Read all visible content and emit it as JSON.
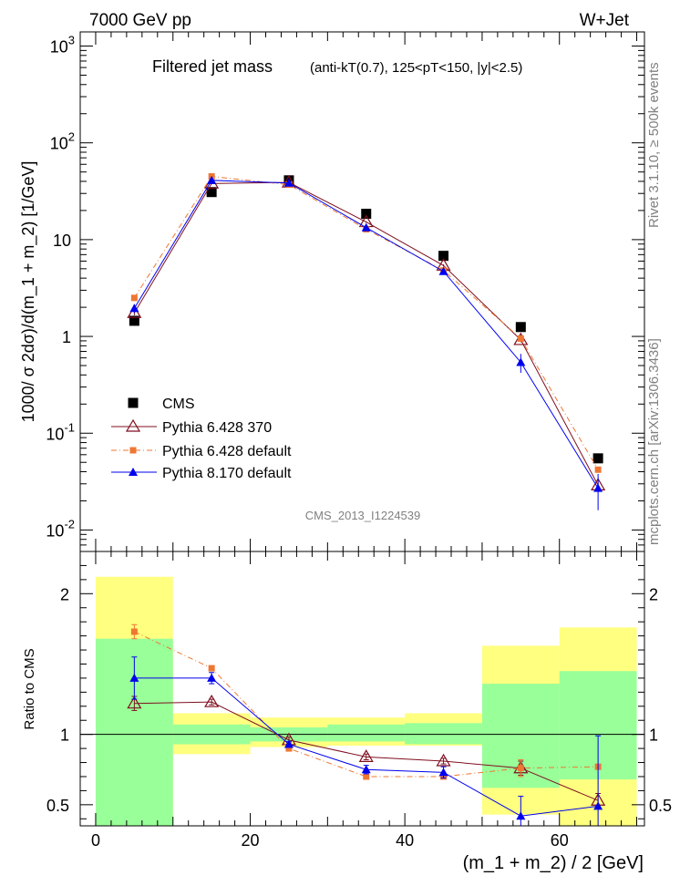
{
  "header": {
    "left": "7000 GeV pp",
    "right": "W+Jet"
  },
  "side_labels": {
    "rivet": "Rivet 3.1.10, ≥ 500k events",
    "mcplots": "mcplots.cern.ch [arXiv:1306.3436]"
  },
  "chart_data": [
    {
      "type": "line",
      "title": "Filtered jet mass",
      "subtitle": "(anti-kT(0.7), 125<pT<150, |y|<2.5)",
      "analysis_tag": "CMS_2013_I1224539",
      "ylabel": "1000/ σ 2dσ)/d(m_1 + m_2) [1/GeV]",
      "yscale": "log",
      "ylim": [
        0.006,
        1400
      ],
      "xlim": [
        -2,
        71
      ],
      "y_ticks": [
        {
          "value": 0.01,
          "base": "10",
          "exp": "-2"
        },
        {
          "value": 0.1,
          "base": "10",
          "exp": "-1"
        },
        {
          "value": 1,
          "base": "1",
          "exp": ""
        },
        {
          "value": 10,
          "base": "10",
          "exp": ""
        },
        {
          "value": 100,
          "base": "10",
          "exp": "2"
        },
        {
          "value": 1000,
          "base": "10",
          "exp": "3"
        }
      ],
      "legend_position": "bottom-left",
      "x": [
        5,
        15,
        25,
        35,
        45,
        55,
        65
      ],
      "series": [
        {
          "name": "CMS",
          "color": "#000000",
          "marker": "square",
          "line": "none",
          "values": [
            1.45,
            31,
            41,
            18.5,
            6.8,
            1.25,
            0.055
          ]
        },
        {
          "name": "Pythia 6.428 370",
          "color": "#7f0f1f",
          "marker": "open-triangle",
          "line": "solid",
          "values": [
            1.75,
            38,
            39,
            15.2,
            5.4,
            0.92,
            0.029
          ],
          "err": [
            0.1,
            0.5,
            0.5,
            0.3,
            0.15,
            0.05,
            0.003
          ]
        },
        {
          "name": "Pythia 6.428 default",
          "color": "#ee7733",
          "marker": "filled-square",
          "line": "dashdot",
          "values": [
            2.5,
            45,
            37,
            12.8,
            4.8,
            0.95,
            0.042
          ],
          "err": [
            0,
            0,
            0,
            0,
            0,
            0,
            0
          ]
        },
        {
          "name": "Pythia 8.170 default",
          "color": "#0000ee",
          "marker": "filled-triangle",
          "line": "solid",
          "values": [
            1.95,
            41,
            38.5,
            13.3,
            4.7,
            0.54,
            0.027
          ],
          "err": [
            0.2,
            0.5,
            0.5,
            0.4,
            0.15,
            0.12,
            0.011
          ]
        }
      ]
    },
    {
      "type": "line",
      "ylabel": "Ratio to CMS",
      "xlabel": "(m_1 + m_2) / 2 [GeV]",
      "ylim": [
        0.35,
        2.3
      ],
      "xlim": [
        -2,
        71
      ],
      "y_ticks": [
        0.5,
        1,
        2
      ],
      "y_tick_labels": [
        "0.5",
        "1",
        "2"
      ],
      "x_ticks": [
        0,
        20,
        40,
        60
      ],
      "x_tick_labels": [
        "0",
        "20",
        "40",
        "60"
      ],
      "reference_line": 1,
      "bands": {
        "bins": [
          [
            0,
            10
          ],
          [
            10,
            20
          ],
          [
            20,
            30
          ],
          [
            30,
            40
          ],
          [
            40,
            50
          ],
          [
            50,
            60
          ],
          [
            60,
            70
          ]
        ],
        "yellow": [
          [
            0.35,
            2.12
          ],
          [
            0.86,
            1.15
          ],
          [
            0.91,
            1.12
          ],
          [
            0.92,
            1.12
          ],
          [
            0.92,
            1.15
          ],
          [
            0.43,
            1.63
          ],
          [
            0.35,
            1.76
          ]
        ],
        "green": [
          [
            0.35,
            1.68
          ],
          [
            0.93,
            1.07
          ],
          [
            0.95,
            1.05
          ],
          [
            0.95,
            1.07
          ],
          [
            0.93,
            1.08
          ],
          [
            0.62,
            1.36
          ],
          [
            0.68,
            1.45
          ]
        ],
        "yellow_color": "#ffff80",
        "green_color": "#99ff99"
      },
      "x": [
        5,
        15,
        25,
        35,
        45,
        55,
        65
      ],
      "series": [
        {
          "name": "Pythia 6.428 370",
          "color": "#7f0f1f",
          "marker": "open-triangle",
          "line": "solid",
          "values": [
            1.22,
            1.23,
            0.96,
            0.84,
            0.81,
            0.76,
            0.53
          ],
          "err": [
            0.05,
            0.02,
            0.02,
            0.02,
            0.02,
            0.05,
            0.05
          ]
        },
        {
          "name": "Pythia 6.428 default",
          "color": "#ee7733",
          "marker": "filled-square",
          "line": "dashdot",
          "values": [
            1.73,
            1.47,
            0.9,
            0.7,
            0.7,
            0.76,
            0.77
          ],
          "err": [
            0.05,
            0,
            0,
            0,
            0,
            0.06,
            0
          ]
        },
        {
          "name": "Pythia 8.170 default",
          "color": "#0000ee",
          "marker": "filled-triangle",
          "line": "solid",
          "values": [
            1.4,
            1.4,
            0.93,
            0.75,
            0.73,
            0.42,
            0.49
          ],
          "err": [
            0.15,
            0.04,
            0.02,
            0.03,
            0.04,
            0.14,
            0.5
          ]
        }
      ]
    }
  ]
}
